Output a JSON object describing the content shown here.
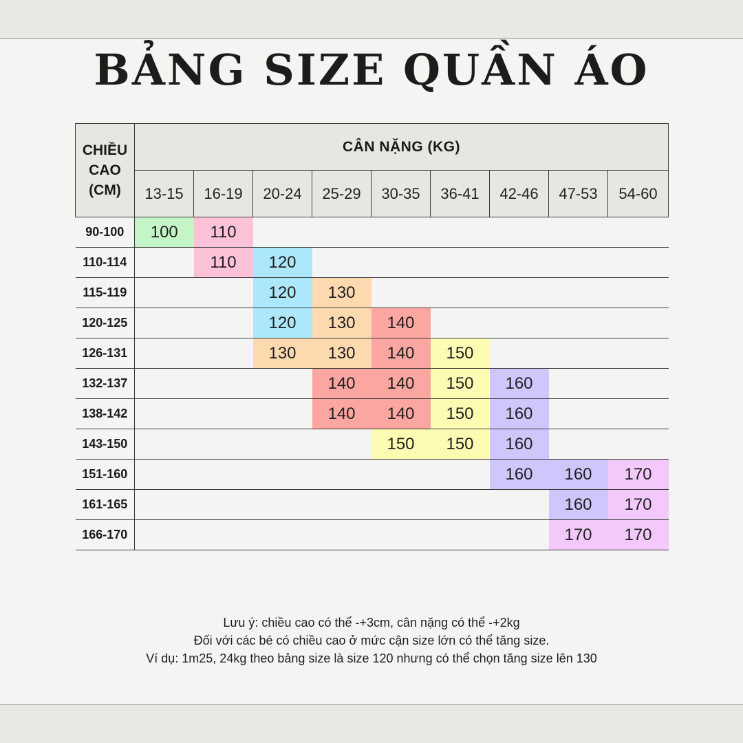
{
  "title": "BẢNG SIZE QUẦN ÁO",
  "table": {
    "corner_label": [
      "CHIỀU",
      "CAO",
      "(CM)"
    ],
    "weight_header": "CÂN NẶNG (KG)",
    "weight_columns": [
      "13-15",
      "16-19",
      "20-24",
      "25-29",
      "30-35",
      "36-41",
      "42-46",
      "47-53",
      "54-60"
    ],
    "rows": [
      {
        "height": "90-100",
        "cells": [
          "100",
          "110",
          "",
          "",
          "",
          "",
          "",
          "",
          ""
        ]
      },
      {
        "height": "110-114",
        "cells": [
          "",
          "110",
          "120",
          "",
          "",
          "",
          "",
          "",
          ""
        ]
      },
      {
        "height": "115-119",
        "cells": [
          "",
          "",
          "120",
          "130",
          "",
          "",
          "",
          "",
          ""
        ]
      },
      {
        "height": "120-125",
        "cells": [
          "",
          "",
          "120",
          "130",
          "140",
          "",
          "",
          "",
          ""
        ]
      },
      {
        "height": "126-131",
        "cells": [
          "",
          "",
          "130",
          "130",
          "140",
          "150",
          "",
          "",
          ""
        ]
      },
      {
        "height": "132-137",
        "cells": [
          "",
          "",
          "",
          "140",
          "140",
          "150",
          "160",
          "",
          ""
        ]
      },
      {
        "height": "138-142",
        "cells": [
          "",
          "",
          "",
          "140",
          "140",
          "150",
          "160",
          "",
          ""
        ]
      },
      {
        "height": "143-150",
        "cells": [
          "",
          "",
          "",
          "",
          "150",
          "150",
          "160",
          "",
          ""
        ]
      },
      {
        "height": "151-160",
        "cells": [
          "",
          "",
          "",
          "",
          "",
          "",
          "160",
          "160",
          "170"
        ]
      },
      {
        "height": "161-165",
        "cells": [
          "",
          "",
          "",
          "",
          "",
          "",
          "",
          "160",
          "170"
        ]
      },
      {
        "height": "166-170",
        "cells": [
          "",
          "",
          "",
          "",
          "",
          "",
          "",
          "170",
          "170"
        ]
      }
    ]
  },
  "size_colors": {
    "100": "#c4f5c6",
    "110": "#fcc3d8",
    "120": "#ade7fb",
    "130": "#fdd9b0",
    "140": "#fca6a2",
    "150": "#fefcb3",
    "160": "#cdc7fb",
    "170": "#f3c9fb"
  },
  "notes": [
    "Lưu ý: chiều cao có thể -+3cm, cân nặng có thể -+2kg",
    "Đối với các bé có chiều cao ở mức cận size lớn có thể tăng size.",
    "Ví dụ: 1m25, 24kg theo bảng size là size 120 nhưng có thể chọn tăng size lên 130"
  ]
}
